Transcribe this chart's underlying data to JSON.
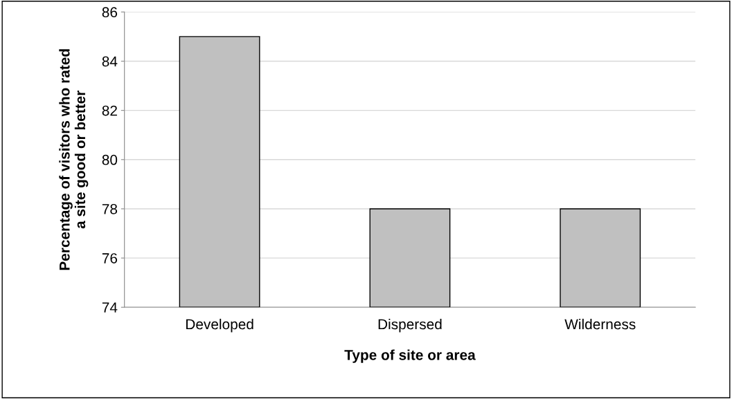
{
  "chart_data": {
    "type": "bar",
    "xlabel": "Type of site or area",
    "ylabel": "Percentage of visitors who rated\na site good or better",
    "categories": [
      "Developed",
      "Dispersed",
      "Wilderness"
    ],
    "values": [
      85,
      78,
      78
    ],
    "color": "#c0c0c0",
    "ylim": [
      74,
      86
    ],
    "yticks": [
      74,
      76,
      78,
      80,
      82,
      84,
      86
    ],
    "grid": "y",
    "legend": false
  }
}
